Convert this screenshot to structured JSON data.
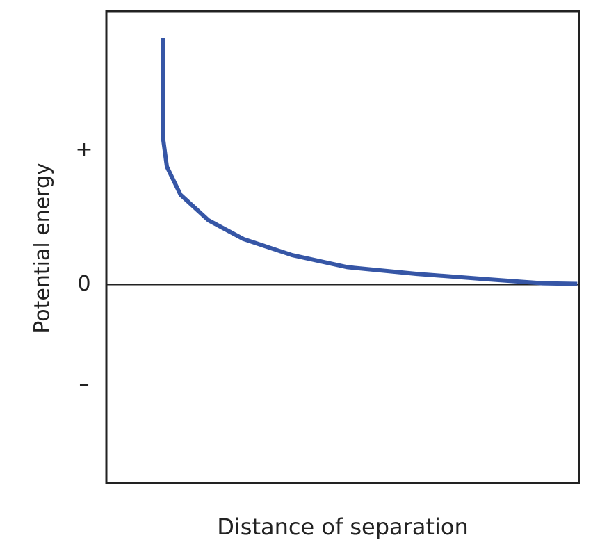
{
  "chart_data": {
    "type": "line",
    "y_label": "Potential energy",
    "x_label": "Distance of separation",
    "series": [
      {
        "color": "#3656a6",
        "x": [
          1.2,
          1.2,
          1.28,
          1.57,
          2.16,
          2.9,
          3.93,
          5.1,
          6.57,
          8.04,
          9.22,
          9.96
        ],
        "values": [
          1.84,
          1.09,
          0.88,
          0.67,
          0.48,
          0.34,
          0.22,
          0.13,
          0.08,
          0.04,
          0.01,
          0.005
        ]
      }
    ],
    "xlim": [
      0,
      10
    ],
    "ylim": [
      -1.48,
      2.04
    ],
    "yticks": [
      {
        "value": 1,
        "label": "+"
      },
      0,
      {
        "value": -0.75,
        "label": "–"
      }
    ],
    "zero_line": true
  }
}
